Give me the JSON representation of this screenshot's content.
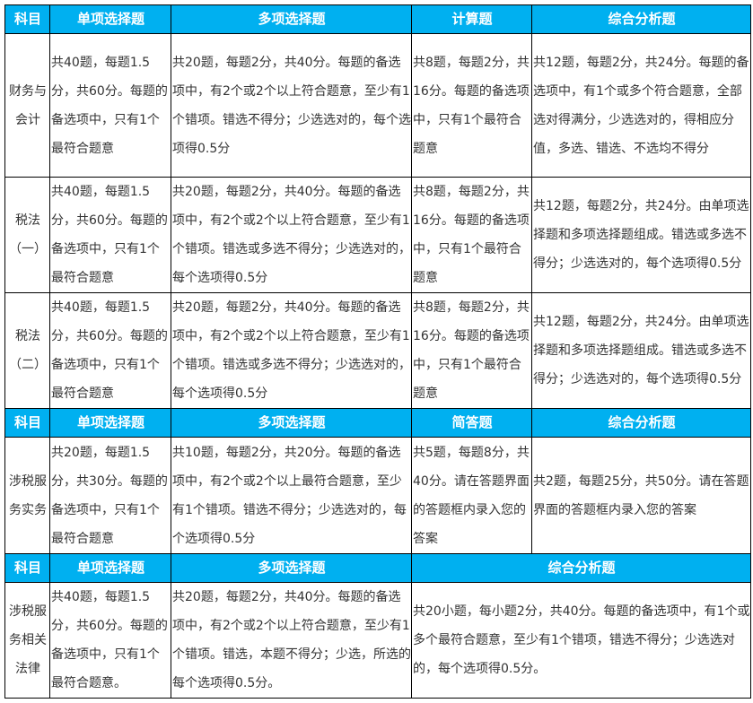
{
  "colors": {
    "header_bg": "#00B0F0",
    "header_text": "#ffffff",
    "border": "#000000"
  },
  "section1": {
    "headers": [
      "科目",
      "单项选择题",
      "多项选择题",
      "计算题",
      "综合分析题"
    ],
    "rows": [
      {
        "subject": "财务与会计",
        "single": "共40题，每题1.5分，共60分。每题的备选项中，只有1个最符合题意",
        "multi": "共20题，每题2分，共40分。每题的备选项中，有2个或2个以上符合题意，至少有1个错项。错选不得分；少选选对的，每个选项得0.5分",
        "calc": "共8题，每题2分，共16分。每题的备选项中，只有1个最符合题意",
        "analysis": "共12题，每题2分，共24分。每题的备选项中，有1个或多个符合题意，全部选对得满分，少选选对的，得相应分值，多选、错选、不选均不得分"
      },
      {
        "subject": "税法（一）",
        "single": "共40题，每题1.5分，共60分。每题的备选项中，只有1个最符合题意",
        "multi": "共20题，每题2分，共40分。每题的备选项中，有2个或2个以上符合题意，至少有1个错项。错选或多选不得分；少选选对的，每个选项得0.5分",
        "calc": "共8题，每题2分，共16分。每题的备选项中，只有1个最符合题意",
        "analysis": "共12题，每题2分，共24分。由单项选择题和多项选择题组成。错选或多选不得分；少选选对的，每个选项得0.5分"
      },
      {
        "subject": "税法（二）",
        "single": "共40题，每题1.5分，共60分。每题的备选项中，只有1个最符合题意",
        "multi": "共20题，每题2分，共40分。每题的备选项中，有2个或2个以上符合题意，至少有1个错项。错选或多选不得分；少选选对的，每个选项得0.5分",
        "calc": "共8题，每题2分，共16分。每题的备选项中，只有1个最符合题意",
        "analysis": "共12题，每题2分，共24分。由单项选择题和多项选择题组成。错选或多选不得分；少选选对的，每个选项得0.5分"
      }
    ]
  },
  "section2": {
    "headers": [
      "科目",
      "单项选择题",
      "多项选择题",
      "简答题",
      "综合分析题"
    ],
    "rows": [
      {
        "subject": "涉税服务实务",
        "single": "共20题，每题1.5分，共30分。每题的备选项中，只有1个最符合题意",
        "multi": "共10题，每题2分，共20分。每题的备选项中，有2个或2个以上最符合题意，至少有1个错项。错选不得分；少选选对的，每个选项得0.5分",
        "short": "共5题，每题8分，共40分。请在答题界面的答题框内录入您的答案",
        "analysis": "共2题，每题25分，共50分。请在答题界面的答题框内录入您的答案"
      }
    ]
  },
  "section3": {
    "headers": [
      "科目",
      "单项选择题",
      "多项选择题",
      "综合分析题"
    ],
    "rows": [
      {
        "subject": "涉税服务相关法律",
        "single": "共40题，每题1.5分，共60分。每题的备选项中，只有1个最符合题意。",
        "multi": "共20题，每题2分，共40分。每题的备选项中，有2个或2个以上符合题意，至少有1个错项。错选，本题不得分；少选，所选的每个选项得0.5分。",
        "analysis": "共20小题，每小题2分，共40分。每题的备选项中，有1个或多个最符合题意，至少有1个错项，错选不得分；少选选对的，每个选项得0.5分。"
      }
    ]
  }
}
